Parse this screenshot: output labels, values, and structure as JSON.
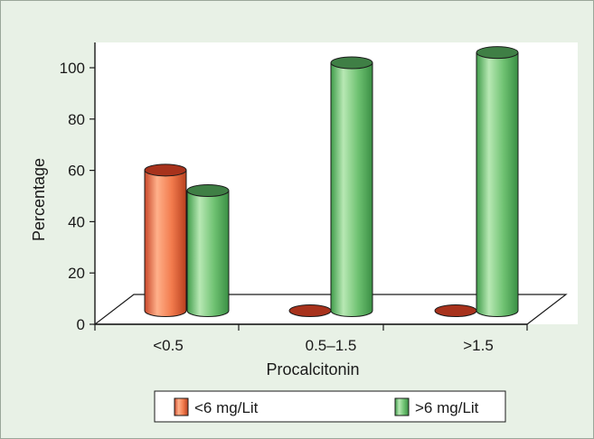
{
  "chart_data": {
    "type": "bar",
    "style": "3d-cylinder",
    "title": "",
    "xlabel": "Procalcitonin",
    "ylabel": "Percentage",
    "ylim": [
      0,
      100
    ],
    "yticks": [
      0,
      20,
      40,
      60,
      80,
      100
    ],
    "categories": [
      "<0.5",
      "0.5–1.5",
      ">1.5"
    ],
    "series": [
      {
        "name": "<6 mg/Lit",
        "values": [
          55,
          0,
          0
        ],
        "color": "#f08a5d"
      },
      {
        "name": ">6 mg/Lit",
        "values": [
          47,
          97,
          101
        ],
        "color": "#7ccb7c"
      }
    ],
    "legend_position": "bottom",
    "grid": false
  }
}
